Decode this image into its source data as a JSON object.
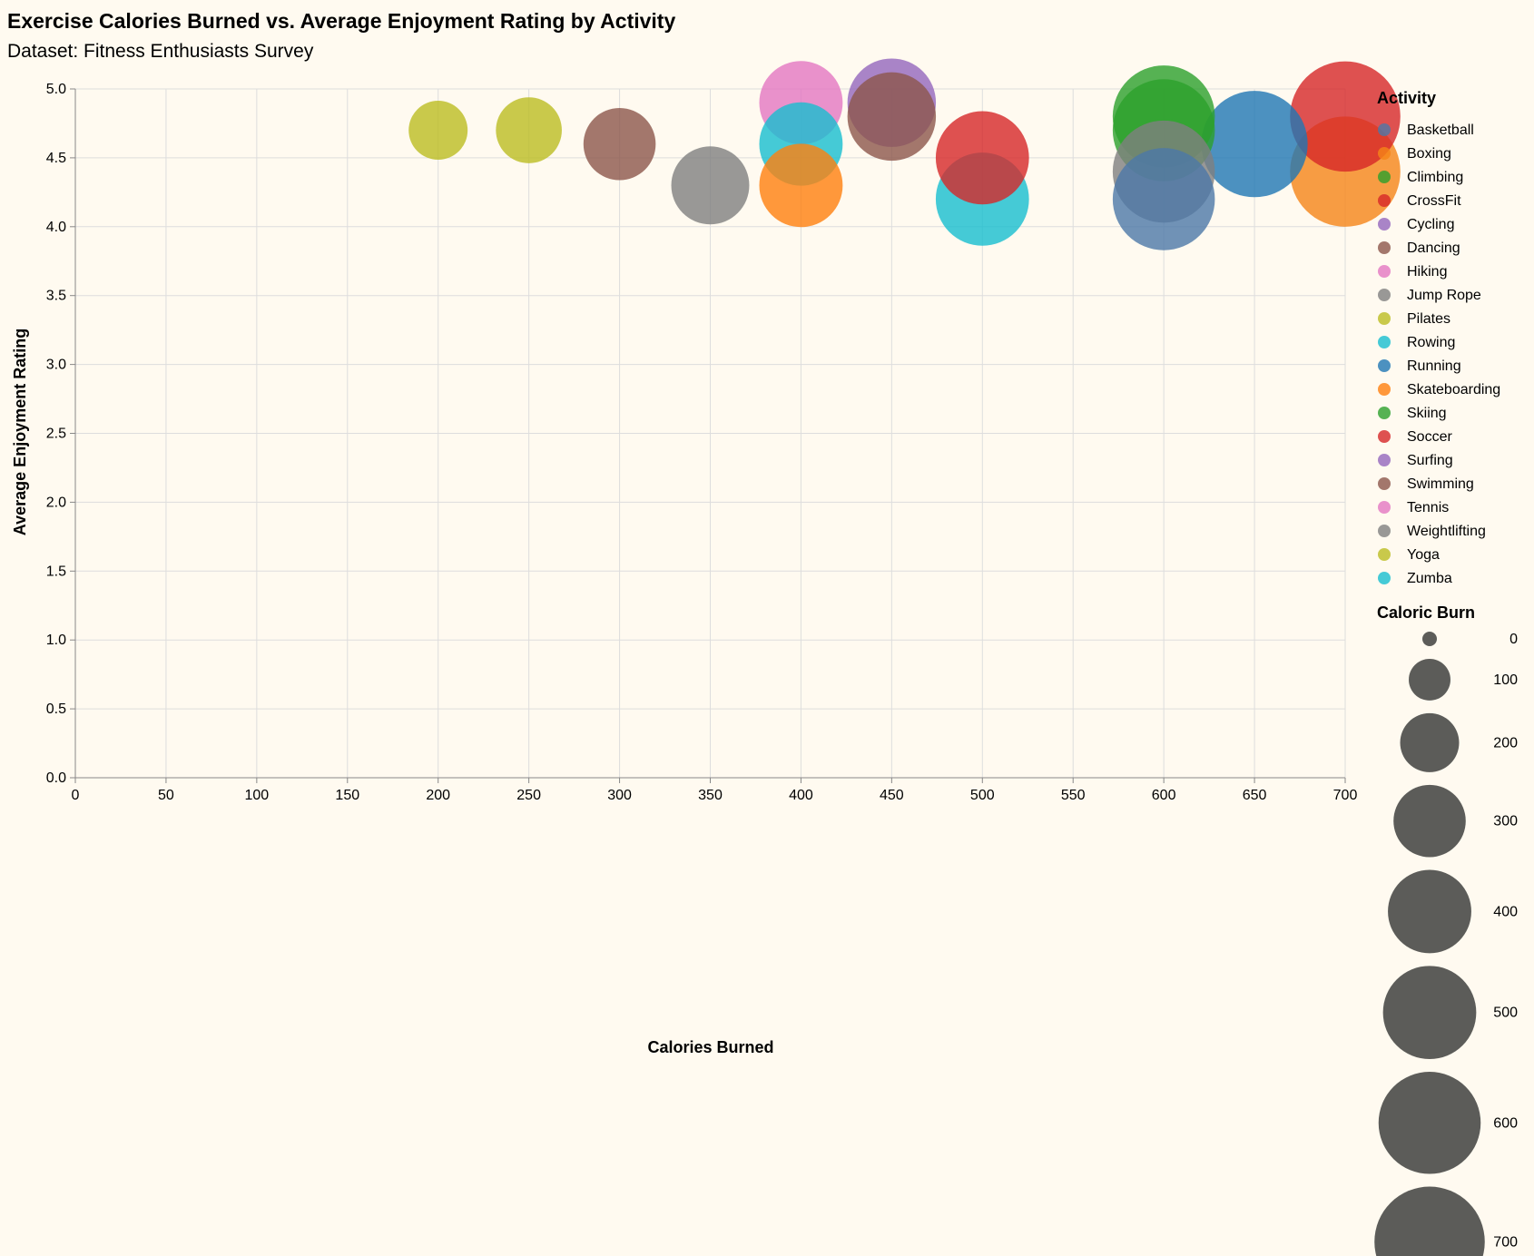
{
  "chart_data": {
    "type": "scatter",
    "title": "Exercise Calories Burned vs. Average Enjoyment Rating by Activity",
    "subtitle": "Dataset: Fitness Enthusiasts Survey",
    "xlabel": "Calories Burned",
    "ylabel": "Average Enjoyment Rating",
    "xlim": [
      0,
      700
    ],
    "ylim": [
      0,
      5
    ],
    "x_ticks": [
      0,
      50,
      100,
      150,
      200,
      250,
      300,
      350,
      400,
      450,
      500,
      550,
      600,
      650,
      700
    ],
    "y_ticks": [
      0.0,
      0.5,
      1.0,
      1.5,
      2.0,
      2.5,
      3.0,
      3.5,
      4.0,
      4.5,
      5.0
    ],
    "grid": true,
    "legend_position": "right",
    "color_legend_title": "Activity",
    "size_legend_title": "Caloric Burn",
    "size_legend_values": [
      0,
      100,
      200,
      300,
      400,
      500,
      600,
      700
    ],
    "categories": [
      {
        "name": "Basketball",
        "color": "#4c78a8"
      },
      {
        "name": "Boxing",
        "color": "#f58518"
      },
      {
        "name": "Climbing",
        "color": "#2ca02c"
      },
      {
        "name": "CrossFit",
        "color": "#d62728"
      },
      {
        "name": "Cycling",
        "color": "#9467bd"
      },
      {
        "name": "Dancing",
        "color": "#8c564b"
      },
      {
        "name": "Hiking",
        "color": "#e377c2"
      },
      {
        "name": "Jump Rope",
        "color": "#7f7f7f"
      },
      {
        "name": "Pilates",
        "color": "#bcbd22"
      },
      {
        "name": "Rowing",
        "color": "#17becf"
      },
      {
        "name": "Running",
        "color": "#1f77b4"
      },
      {
        "name": "Skateboarding",
        "color": "#ff7f0e"
      },
      {
        "name": "Skiing",
        "color": "#2ca02c"
      },
      {
        "name": "Soccer",
        "color": "#d62728"
      },
      {
        "name": "Surfing",
        "color": "#9467bd"
      },
      {
        "name": "Swimming",
        "color": "#8c564b"
      },
      {
        "name": "Tennis",
        "color": "#e377c2"
      },
      {
        "name": "Weightlifting",
        "color": "#7f7f7f"
      },
      {
        "name": "Yoga",
        "color": "#bcbd22"
      },
      {
        "name": "Zumba",
        "color": "#17becf"
      }
    ],
    "points": [
      {
        "activity": "Pilates",
        "x": 200,
        "y": 4.7,
        "size": 200
      },
      {
        "activity": "Yoga",
        "x": 250,
        "y": 4.7,
        "size": 250
      },
      {
        "activity": "Dancing",
        "x": 300,
        "y": 4.6,
        "size": 300
      },
      {
        "activity": "Weightlifting",
        "x": 350,
        "y": 4.3,
        "size": 350
      },
      {
        "activity": "Hiking",
        "x": 400,
        "y": 4.9,
        "size": 400
      },
      {
        "activity": "Zumba",
        "x": 400,
        "y": 4.6,
        "size": 400
      },
      {
        "activity": "Skateboarding",
        "x": 400,
        "y": 4.3,
        "size": 400
      },
      {
        "activity": "Surfing",
        "x": 450,
        "y": 4.9,
        "size": 450
      },
      {
        "activity": "Swimming",
        "x": 450,
        "y": 4.8,
        "size": 450
      },
      {
        "activity": "Rowing",
        "x": 500,
        "y": 4.2,
        "size": 500
      },
      {
        "activity": "CrossFit",
        "x": 500,
        "y": 4.5,
        "size": 500
      },
      {
        "activity": "Skiing",
        "x": 600,
        "y": 4.8,
        "size": 600
      },
      {
        "activity": "Climbing",
        "x": 600,
        "y": 4.7,
        "size": 600
      },
      {
        "activity": "Jump Rope",
        "x": 600,
        "y": 4.4,
        "size": 600
      },
      {
        "activity": "Basketball",
        "x": 600,
        "y": 4.2,
        "size": 600
      },
      {
        "activity": "Running",
        "x": 650,
        "y": 4.6,
        "size": 650
      },
      {
        "activity": "Boxing",
        "x": 700,
        "y": 4.4,
        "size": 700
      },
      {
        "activity": "Soccer",
        "x": 700,
        "y": 4.8,
        "size": 700
      }
    ]
  }
}
